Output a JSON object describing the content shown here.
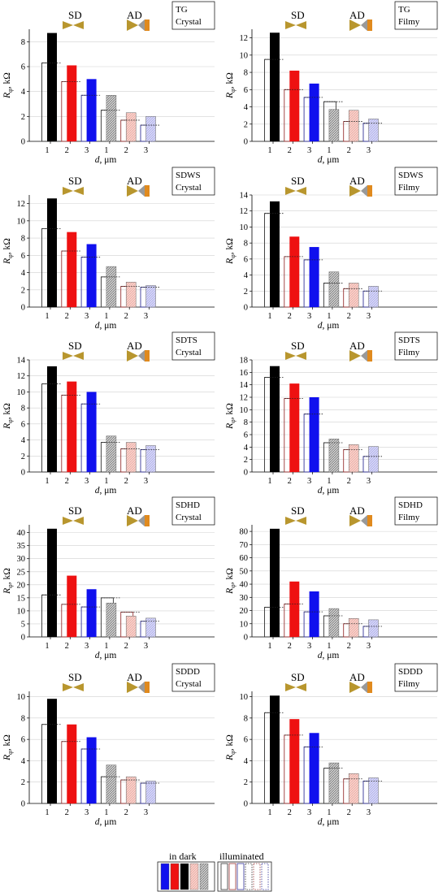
{
  "labels": {
    "sd": "SD",
    "ad": "AD",
    "xlabel": "d, μm",
    "ylabel_main": "R",
    "ylabel_sub": "φ",
    "ylabel_unit": ", kΩ"
  },
  "legend": {
    "in_dark": "in dark",
    "illuminated": "illuminated"
  },
  "colors": {
    "sd1": "#000000",
    "sd2": "#ee1111",
    "sd3": "#1010ee",
    "ad1": "#aaaaaa",
    "ad2": "#f2b8b0",
    "ad3": "#b8b8f0",
    "diode_gold": "#b8962e",
    "diode_gray": "#999999",
    "diode_orange": "#e08a1e"
  },
  "chart_data": [
    {
      "type": "bar",
      "sample": "TG",
      "phase": "Crystal",
      "categories": [
        "1",
        "2",
        "3",
        "1",
        "2",
        "3"
      ],
      "ylim": [
        0,
        9
      ],
      "yticks": [
        0,
        2,
        4,
        6,
        8
      ],
      "series": [
        {
          "name": "in dark",
          "values": [
            8.7,
            6.1,
            5.0,
            3.7,
            2.3,
            2.0
          ]
        },
        {
          "name": "illuminated",
          "values": [
            6.3,
            4.8,
            3.7,
            2.5,
            1.7,
            1.3
          ]
        }
      ]
    },
    {
      "type": "bar",
      "sample": "TG",
      "phase": "Filmy",
      "categories": [
        "1",
        "2",
        "3",
        "1",
        "2",
        "3"
      ],
      "ylim": [
        0,
        13
      ],
      "yticks": [
        0,
        2,
        4,
        6,
        8,
        10,
        12
      ],
      "series": [
        {
          "name": "in dark",
          "values": [
            12.6,
            8.2,
            6.7,
            3.7,
            3.6,
            2.6
          ]
        },
        {
          "name": "illuminated",
          "values": [
            9.5,
            6.0,
            5.1,
            4.6,
            2.3,
            2.1
          ]
        }
      ]
    },
    {
      "type": "bar",
      "sample": "SDWS",
      "phase": "Crystal",
      "categories": [
        "1",
        "2",
        "3",
        "1",
        "2",
        "3"
      ],
      "ylim": [
        0,
        13
      ],
      "yticks": [
        0,
        2,
        4,
        6,
        8,
        10,
        12
      ],
      "series": [
        {
          "name": "in dark",
          "values": [
            12.6,
            8.7,
            7.3,
            4.7,
            2.9,
            2.5
          ]
        },
        {
          "name": "illuminated",
          "values": [
            9.1,
            6.5,
            5.8,
            3.5,
            2.4,
            2.3
          ]
        }
      ]
    },
    {
      "type": "bar",
      "sample": "SDWS",
      "phase": "Filmy",
      "categories": [
        "1",
        "2",
        "3",
        "1",
        "2",
        "3"
      ],
      "ylim": [
        0,
        14
      ],
      "yticks": [
        0,
        2,
        4,
        6,
        8,
        10,
        12,
        14
      ],
      "series": [
        {
          "name": "in dark",
          "values": [
            13.2,
            8.8,
            7.5,
            4.4,
            3.0,
            2.6
          ]
        },
        {
          "name": "illuminated",
          "values": [
            11.7,
            6.3,
            5.9,
            3.0,
            2.3,
            2.0
          ]
        }
      ]
    },
    {
      "type": "bar",
      "sample": "SDTS",
      "phase": "Crystal",
      "categories": [
        "1",
        "2",
        "3",
        "1",
        "2",
        "3"
      ],
      "ylim": [
        0,
        14
      ],
      "yticks": [
        0,
        2,
        4,
        6,
        8,
        10,
        12,
        14
      ],
      "series": [
        {
          "name": "in dark",
          "values": [
            13.2,
            11.3,
            10.0,
            4.5,
            3.7,
            3.3
          ]
        },
        {
          "name": "illuminated",
          "values": [
            11.0,
            9.6,
            8.5,
            3.7,
            2.9,
            2.8
          ]
        }
      ]
    },
    {
      "type": "bar",
      "sample": "SDTS",
      "phase": "Filmy",
      "categories": [
        "1",
        "2",
        "3",
        "1",
        "2",
        "3"
      ],
      "ylim": [
        0,
        18
      ],
      "yticks": [
        0,
        2,
        4,
        6,
        8,
        10,
        12,
        14,
        16,
        18
      ],
      "series": [
        {
          "name": "in dark",
          "values": [
            17.0,
            14.2,
            12.0,
            5.3,
            4.4,
            4.1
          ]
        },
        {
          "name": "illuminated",
          "values": [
            15.2,
            11.8,
            9.3,
            4.7,
            3.6,
            2.5
          ]
        }
      ]
    },
    {
      "type": "bar",
      "sample": "SDHD",
      "phase": "Crystal",
      "categories": [
        "1",
        "2",
        "3",
        "1",
        "2",
        "3"
      ],
      "ylim": [
        0,
        43
      ],
      "yticks": [
        0,
        5,
        10,
        15,
        20,
        25,
        30,
        35,
        40
      ],
      "series": [
        {
          "name": "in dark",
          "values": [
            41.5,
            23.5,
            18.3,
            13.0,
            8.0,
            7.2
          ]
        },
        {
          "name": "illuminated",
          "values": [
            16.1,
            12.5,
            11.5,
            15.0,
            9.5,
            6.0
          ]
        }
      ]
    },
    {
      "type": "bar",
      "sample": "SDHD",
      "phase": "Filmy",
      "categories": [
        "1",
        "2",
        "3",
        "1",
        "2",
        "3"
      ],
      "ylim": [
        0,
        85
      ],
      "yticks": [
        0,
        10,
        20,
        30,
        40,
        50,
        60,
        70,
        80
      ],
      "series": [
        {
          "name": "in dark",
          "values": [
            82.0,
            42.0,
            34.5,
            21.5,
            14.0,
            13.0
          ]
        },
        {
          "name": "illuminated",
          "values": [
            22.5,
            25.0,
            19.0,
            16.0,
            10.0,
            8.0
          ]
        }
      ]
    },
    {
      "type": "bar",
      "sample": "SDDD",
      "phase": "Crystal",
      "categories": [
        "1",
        "2",
        "3",
        "1",
        "2",
        "3"
      ],
      "ylim": [
        0,
        10.5
      ],
      "yticks": [
        0,
        2,
        4,
        6,
        8,
        10
      ],
      "series": [
        {
          "name": "in dark",
          "values": [
            9.8,
            7.4,
            6.2,
            3.6,
            2.5,
            2.1
          ]
        },
        {
          "name": "illuminated",
          "values": [
            7.4,
            5.8,
            5.1,
            2.5,
            2.2,
            1.9
          ]
        }
      ]
    },
    {
      "type": "bar",
      "sample": "SDDD",
      "phase": "Filmy",
      "categories": [
        "1",
        "2",
        "3",
        "1",
        "2",
        "3"
      ],
      "ylim": [
        0,
        10.5
      ],
      "yticks": [
        0,
        2,
        4,
        6,
        8,
        10
      ],
      "series": [
        {
          "name": "in dark",
          "values": [
            10.1,
            7.9,
            6.6,
            3.8,
            2.8,
            2.4
          ]
        },
        {
          "name": "illuminated",
          "values": [
            8.5,
            6.4,
            5.3,
            3.3,
            2.3,
            2.1
          ]
        }
      ]
    }
  ]
}
